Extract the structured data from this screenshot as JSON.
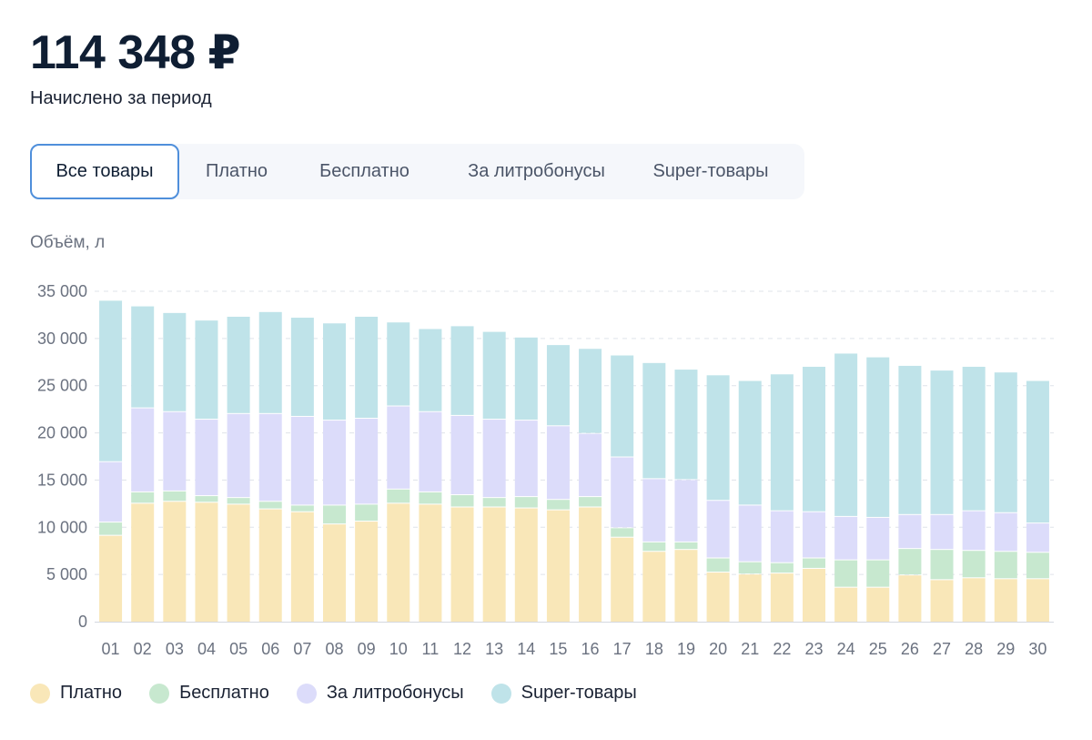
{
  "header": {
    "total": "114 348 ₽",
    "subtitle": "Начислено за период"
  },
  "tabs": [
    {
      "label": "Все товары",
      "active": true
    },
    {
      "label": "Платно",
      "active": false
    },
    {
      "label": "Бесплатно",
      "active": false
    },
    {
      "label": "За литробонусы",
      "active": false
    },
    {
      "label": "Super-товары",
      "active": false
    }
  ],
  "chart_data": {
    "type": "bar",
    "stacked": true,
    "ylabel": "Объём, л",
    "ylim": [
      0,
      35000
    ],
    "yticks": [
      0,
      5000,
      10000,
      15000,
      20000,
      25000,
      30000,
      35000
    ],
    "ytick_labels": [
      "0",
      "5 000",
      "10 000",
      "15 000",
      "20 000",
      "25 000",
      "30 000",
      "35 000"
    ],
    "grid": true,
    "legend_position": "bottom-left",
    "categories": [
      "01",
      "02",
      "03",
      "04",
      "05",
      "06",
      "07",
      "08",
      "09",
      "10",
      "11",
      "12",
      "13",
      "14",
      "15",
      "16",
      "17",
      "18",
      "19",
      "20",
      "21",
      "22",
      "23",
      "24",
      "25",
      "26",
      "27",
      "28",
      "29",
      "30"
    ],
    "series": [
      {
        "name": "Платно",
        "color": "#f9e7b8",
        "values": [
          9100,
          12500,
          12700,
          12600,
          12400,
          11900,
          11600,
          10300,
          10600,
          12500,
          12400,
          12100,
          12100,
          12000,
          11800,
          12100,
          8900,
          7400,
          7600,
          5200,
          5000,
          5100,
          5600,
          3600,
          3600,
          4900,
          4400,
          4600,
          4500,
          4500
        ]
      },
      {
        "name": "Бесплатно",
        "color": "#c7e8cf",
        "values": [
          1400,
          1200,
          1100,
          700,
          700,
          800,
          700,
          2000,
          1800,
          1500,
          1300,
          1300,
          1000,
          1200,
          1100,
          1100,
          1000,
          1000,
          800,
          1500,
          1300,
          1100,
          1100,
          2900,
          2900,
          2800,
          3200,
          2900,
          2900,
          2800
        ]
      },
      {
        "name": "За литробонусы",
        "color": "#dcdcfa",
        "values": [
          6400,
          8900,
          8400,
          8100,
          8900,
          9300,
          9400,
          9000,
          9100,
          8800,
          8500,
          8400,
          8300,
          8100,
          7800,
          6700,
          7500,
          6700,
          6600,
          6100,
          6000,
          5500,
          4900,
          4600,
          4500,
          3600,
          3700,
          4200,
          4100,
          3100
        ]
      },
      {
        "name": "Super-товары",
        "color": "#bfe3e9",
        "values": [
          17100,
          10800,
          10500,
          10500,
          10300,
          10800,
          10500,
          10300,
          10800,
          8900,
          8800,
          9500,
          9300,
          8800,
          8600,
          9000,
          10800,
          12300,
          11700,
          13300,
          13200,
          14500,
          15400,
          17300,
          17000,
          15800,
          15300,
          15300,
          14900,
          15100
        ]
      }
    ]
  }
}
